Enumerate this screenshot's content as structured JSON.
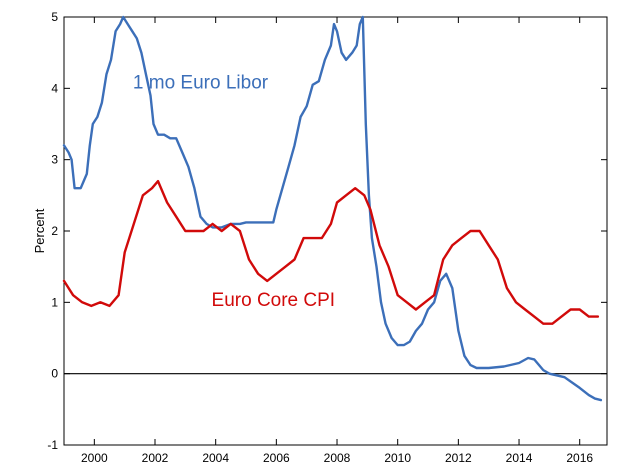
{
  "chart_data": {
    "type": "line",
    "title": "",
    "xlabel": "",
    "ylabel": "Percent",
    "xlim": [
      1999.0,
      2016.9
    ],
    "ylim": [
      -1,
      5
    ],
    "x_ticks": [
      2000,
      2002,
      2004,
      2006,
      2008,
      2010,
      2012,
      2014,
      2016
    ],
    "y_ticks": [
      -1,
      0,
      1,
      2,
      3,
      4,
      5
    ],
    "zero_line": true,
    "grid": false,
    "legend": "none",
    "series": [
      {
        "name": "1 mo Euro Libor",
        "color": "#3c6fb9",
        "label_position": [
          2003.5,
          4.0
        ],
        "x": [
          1999.0,
          1999.15,
          1999.25,
          1999.35,
          1999.45,
          1999.55,
          1999.65,
          1999.75,
          1999.85,
          1999.95,
          2000.1,
          2000.25,
          2000.4,
          2000.55,
          2000.7,
          2000.85,
          2000.95,
          2001.1,
          2001.25,
          2001.4,
          2001.55,
          2001.7,
          2001.85,
          2001.95,
          2002.1,
          2002.3,
          2002.5,
          2002.7,
          2002.9,
          2003.1,
          2003.3,
          2003.5,
          2003.7,
          2003.9,
          2004.2,
          2004.5,
          2004.8,
          2005.0,
          2005.3,
          2005.6,
          2005.9,
          2006.0,
          2006.2,
          2006.4,
          2006.6,
          2006.8,
          2007.0,
          2007.2,
          2007.4,
          2007.6,
          2007.8,
          2007.9,
          2008.0,
          2008.15,
          2008.3,
          2008.5,
          2008.65,
          2008.75,
          2008.85,
          2008.95,
          2009.05,
          2009.15,
          2009.3,
          2009.45,
          2009.6,
          2009.8,
          2010.0,
          2010.2,
          2010.4,
          2010.6,
          2010.8,
          2011.0,
          2011.2,
          2011.4,
          2011.6,
          2011.8,
          2012.0,
          2012.2,
          2012.4,
          2012.6,
          2012.8,
          2013.0,
          2013.5,
          2014.0,
          2014.3,
          2014.5,
          2014.8,
          2015.0,
          2015.5,
          2016.0,
          2016.3,
          2016.5,
          2016.7
        ],
        "y": [
          3.2,
          3.1,
          3.0,
          2.6,
          2.6,
          2.6,
          2.7,
          2.8,
          3.2,
          3.5,
          3.6,
          3.8,
          4.2,
          4.4,
          4.8,
          4.9,
          5.0,
          4.9,
          4.8,
          4.7,
          4.5,
          4.2,
          3.9,
          3.5,
          3.35,
          3.35,
          3.3,
          3.3,
          3.1,
          2.9,
          2.6,
          2.2,
          2.1,
          2.05,
          2.05,
          2.1,
          2.1,
          2.12,
          2.12,
          2.12,
          2.12,
          2.3,
          2.6,
          2.9,
          3.2,
          3.6,
          3.75,
          4.05,
          4.1,
          4.4,
          4.6,
          4.9,
          4.8,
          4.5,
          4.4,
          4.5,
          4.6,
          4.9,
          5.0,
          3.5,
          2.5,
          1.9,
          1.5,
          1.0,
          0.7,
          0.5,
          0.4,
          0.4,
          0.45,
          0.6,
          0.7,
          0.9,
          1.0,
          1.3,
          1.4,
          1.2,
          0.6,
          0.25,
          0.12,
          0.08,
          0.08,
          0.08,
          0.1,
          0.15,
          0.22,
          0.2,
          0.05,
          0.0,
          -0.05,
          -0.2,
          -0.3,
          -0.35,
          -0.37
        ]
      },
      {
        "name": "Euro Core CPI",
        "color": "#d10a0a",
        "label_position": [
          2005.9,
          0.95
        ],
        "x": [
          1999.0,
          1999.3,
          1999.6,
          1999.9,
          2000.2,
          2000.5,
          2000.8,
          2001.0,
          2001.3,
          2001.6,
          2001.9,
          2002.1,
          2002.4,
          2002.7,
          2003.0,
          2003.3,
          2003.6,
          2003.9,
          2004.2,
          2004.5,
          2004.8,
          2005.1,
          2005.4,
          2005.7,
          2006.0,
          2006.3,
          2006.6,
          2006.9,
          2007.2,
          2007.5,
          2007.8,
          2008.0,
          2008.3,
          2008.6,
          2008.9,
          2009.1,
          2009.4,
          2009.7,
          2010.0,
          2010.3,
          2010.6,
          2010.9,
          2011.2,
          2011.5,
          2011.8,
          2012.1,
          2012.4,
          2012.7,
          2013.0,
          2013.3,
          2013.6,
          2013.9,
          2014.2,
          2014.5,
          2014.8,
          2015.1,
          2015.4,
          2015.7,
          2016.0,
          2016.3,
          2016.6
        ],
        "y": [
          1.3,
          1.1,
          1.0,
          0.95,
          1.0,
          0.95,
          1.1,
          1.7,
          2.1,
          2.5,
          2.6,
          2.7,
          2.4,
          2.2,
          2.0,
          2.0,
          2.0,
          2.1,
          2.0,
          2.1,
          2.0,
          1.6,
          1.4,
          1.3,
          1.4,
          1.5,
          1.6,
          1.9,
          1.9,
          1.9,
          2.1,
          2.4,
          2.5,
          2.6,
          2.5,
          2.3,
          1.8,
          1.5,
          1.1,
          1.0,
          0.9,
          1.0,
          1.1,
          1.6,
          1.8,
          1.9,
          2.0,
          2.0,
          1.8,
          1.6,
          1.2,
          1.0,
          0.9,
          0.8,
          0.7,
          0.7,
          0.8,
          0.9,
          0.9,
          0.8,
          0.8
        ]
      }
    ]
  }
}
